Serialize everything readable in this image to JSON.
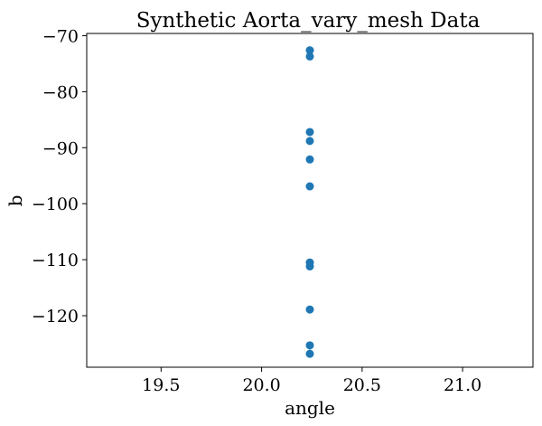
{
  "chart_data": {
    "type": "scatter",
    "title": "Synthetic Aorta_vary_mesh Data",
    "xlabel": "angle",
    "ylabel": "b",
    "xlim": [
      19.13,
      21.35
    ],
    "ylim": [
      -129.2,
      -69.6
    ],
    "xticks": [
      19.5,
      20.0,
      20.5,
      21.0
    ],
    "xtick_labels": [
      "19.5",
      "20.0",
      "20.5",
      "21.0"
    ],
    "yticks": [
      -120,
      -110,
      -100,
      -90,
      -80,
      -70
    ],
    "ytick_labels": [
      "−120",
      "−110",
      "−100",
      "−90",
      "−80",
      "−70"
    ],
    "grid": false,
    "marker_color": "#1f77b4",
    "points": [
      {
        "x": 20.24,
        "y": -72.6
      },
      {
        "x": 20.24,
        "y": -73.7
      },
      {
        "x": 20.24,
        "y": -87.2
      },
      {
        "x": 20.24,
        "y": -88.8
      },
      {
        "x": 20.24,
        "y": -92.1
      },
      {
        "x": 20.24,
        "y": -96.9
      },
      {
        "x": 20.24,
        "y": -110.5
      },
      {
        "x": 20.24,
        "y": -111.2
      },
      {
        "x": 20.24,
        "y": -118.9
      },
      {
        "x": 20.24,
        "y": -125.3
      },
      {
        "x": 20.24,
        "y": -126.8
      }
    ]
  }
}
